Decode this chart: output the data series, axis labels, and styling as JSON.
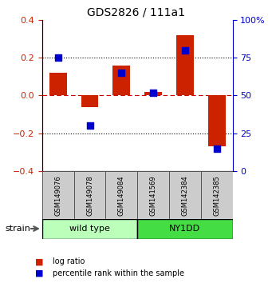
{
  "title": "GDS2826 / 111a1",
  "samples": [
    "GSM149076",
    "GSM149078",
    "GSM149084",
    "GSM141569",
    "GSM142384",
    "GSM142385"
  ],
  "log_ratio": [
    0.12,
    -0.06,
    0.16,
    0.02,
    0.32,
    -0.27
  ],
  "percentile_rank": [
    75,
    30,
    65,
    52,
    80,
    15
  ],
  "groups": [
    {
      "label": "wild type",
      "start": 0,
      "end": 3,
      "color": "#bbffbb"
    },
    {
      "label": "NY1DD",
      "start": 3,
      "end": 6,
      "color": "#44dd44"
    }
  ],
  "left_ylim": [
    -0.4,
    0.4
  ],
  "right_ylim": [
    0,
    100
  ],
  "left_yticks": [
    -0.4,
    -0.2,
    0.0,
    0.2,
    0.4
  ],
  "right_yticks": [
    0,
    25,
    50,
    75,
    100
  ],
  "right_yticklabels": [
    "0",
    "25",
    "50",
    "75",
    "100%"
  ],
  "dotted_lines": [
    -0.2,
    0.2
  ],
  "zero_line_y": 0.0,
  "bar_color": "#cc2200",
  "blue_color": "#0000cc",
  "zero_line_color": "#cc0000",
  "left_tick_color": "#cc2200",
  "right_tick_color": "#0000cc",
  "bar_width": 0.55,
  "blue_square_size": 35,
  "strain_label": "strain",
  "legend_items": [
    {
      "label": "log ratio",
      "color": "#cc2200"
    },
    {
      "label": "percentile rank within the sample",
      "color": "#0000cc"
    }
  ]
}
